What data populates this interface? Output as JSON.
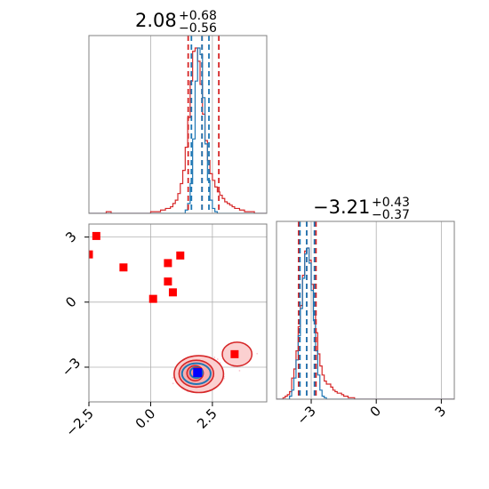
{
  "chart_data": {
    "type": "corner",
    "parameters": [
      {
        "title_value": "2.08",
        "title_upper": "+0.68",
        "title_lower": "−0.56",
        "xlim": [
          -2.5,
          4.7
        ]
      },
      {
        "title_value": "−3.21",
        "title_upper": "+0.43",
        "title_lower": "−0.37",
        "xlim": [
          -4.6,
          3.6
        ]
      }
    ],
    "ticks_param1": [
      {
        "value": -2.5,
        "label": "−2.5"
      },
      {
        "value": 0.0,
        "label": "0.0"
      },
      {
        "value": 2.5,
        "label": "2.5"
      }
    ],
    "ticks_param2": [
      {
        "value": -3,
        "label": "−3"
      },
      {
        "value": 0,
        "label": "0"
      },
      {
        "value": 3,
        "label": "3"
      }
    ],
    "grid": true,
    "colors": {
      "red": "#d62728",
      "blue": "#1f77b4",
      "marker_red": "#ff0000",
      "marker_blue": "#0000ff",
      "grid": "#b0b0b0",
      "frame": "#808080"
    },
    "series": [
      {
        "color": "red",
        "quantile_lines_param1": [
          1.52,
          2.08,
          2.76
        ],
        "quantile_lines_param2": [
          -3.58,
          -3.21,
          -2.78
        ],
        "hist_param1": {
          "bin_start": -2.5,
          "bin_width": 0.1,
          "values": [
            0,
            0,
            0,
            0,
            0,
            0,
            0,
            1,
            1,
            0,
            0,
            0,
            0,
            0,
            0,
            0,
            0,
            0,
            0,
            0,
            0,
            0,
            0,
            0,
            0,
            1,
            1,
            1,
            1,
            2,
            2,
            3,
            3,
            4,
            6,
            8,
            12,
            18,
            26,
            40,
            58,
            80,
            98,
            100,
            92,
            78,
            60,
            44,
            32,
            24,
            20,
            16,
            13,
            11,
            9,
            7,
            6,
            5,
            4,
            3,
            3,
            2,
            2,
            1,
            1,
            1,
            1,
            0,
            0,
            0,
            0,
            0
          ]
        },
        "hist_param2": {
          "bin_start": -4.6,
          "bin_width": 0.1,
          "values": [
            0,
            0,
            0,
            1,
            2,
            3,
            5,
            14,
            20,
            32,
            48,
            62,
            82,
            98,
            100,
            92,
            76,
            58,
            44,
            30,
            22,
            16,
            12,
            10,
            10,
            8,
            6,
            5,
            4,
            4,
            3,
            2,
            2,
            1,
            1,
            1,
            0,
            0,
            0,
            0,
            0,
            0,
            0,
            0,
            0,
            0,
            0,
            0,
            0,
            0,
            0,
            0,
            0,
            0,
            0,
            0,
            0,
            0,
            0,
            0,
            0,
            0,
            0,
            0,
            0,
            0,
            0,
            0,
            0,
            0,
            0,
            0,
            0,
            0,
            0,
            0,
            0,
            0,
            0,
            0,
            0,
            0
          ]
        }
      },
      {
        "color": "blue",
        "quantile_lines_param1": [
          1.65,
          2.08,
          2.36
        ],
        "quantile_lines_param2": [
          -3.52,
          -3.21,
          -2.85
        ],
        "hist_param1": {
          "bin_start": -2.5,
          "bin_width": 0.1,
          "values": [
            0,
            0,
            0,
            0,
            0,
            0,
            0,
            0,
            0,
            0,
            0,
            0,
            0,
            0,
            0,
            0,
            0,
            0,
            0,
            0,
            0,
            0,
            0,
            0,
            0,
            0,
            0,
            0,
            0,
            0,
            0,
            0,
            0,
            0,
            0,
            0,
            0,
            0,
            0,
            2,
            6,
            18,
            45,
            80,
            100,
            96,
            70,
            42,
            20,
            8,
            3,
            1,
            0,
            0,
            0,
            0,
            0,
            0,
            0,
            0,
            0,
            0,
            0,
            0,
            0,
            0,
            0,
            0,
            0,
            0,
            0,
            0
          ]
        },
        "hist_param2": {
          "bin_start": -4.6,
          "bin_width": 0.1,
          "values": [
            0,
            0,
            0,
            0,
            0,
            0,
            2,
            6,
            14,
            26,
            42,
            60,
            80,
            96,
            100,
            90,
            72,
            52,
            32,
            16,
            6,
            2,
            1,
            0,
            0,
            0,
            0,
            0,
            0,
            0,
            0,
            0,
            0,
            0,
            0,
            0,
            0,
            0,
            0,
            0,
            0,
            0,
            0,
            0,
            0,
            0,
            0,
            0,
            0,
            0,
            0,
            0,
            0,
            0,
            0,
            0,
            0,
            0,
            0,
            0,
            0,
            0,
            0,
            0,
            0,
            0,
            0,
            0,
            0,
            0,
            0,
            0,
            0,
            0,
            0,
            0,
            0,
            0,
            0,
            0,
            0,
            0
          ]
        }
      }
    ],
    "red_markers": [
      {
        "x": -2.5,
        "y": 2.2
      },
      {
        "x": -2.2,
        "y": 3.05
      },
      {
        "x": -1.1,
        "y": 1.6
      },
      {
        "x": 0.1,
        "y": 0.15
      },
      {
        "x": 0.7,
        "y": 0.95
      },
      {
        "x": 0.7,
        "y": 1.8
      },
      {
        "x": 0.9,
        "y": 0.45
      },
      {
        "x": 1.2,
        "y": 2.15
      },
      {
        "x": 3.4,
        "y": -2.4
      },
      {
        "x": 1.9,
        "y": -3.2
      }
    ],
    "truth_marker": {
      "x": 1.9,
      "y": -3.25
    },
    "contours_red": [
      {
        "cx": 1.8,
        "cy": -3.28,
        "rx": 0.33,
        "ry": 0.35,
        "fill": "#f69293",
        "stroke": "#d62728"
      },
      {
        "cx": 1.85,
        "cy": -3.3,
        "rx": 0.7,
        "ry": 0.62,
        "fill": "#f8b0b0",
        "stroke": "#d62728"
      },
      {
        "cx": 1.95,
        "cy": -3.32,
        "rx": 1.0,
        "ry": 0.85,
        "fill": "#fbd0d0",
        "stroke": "#d62728"
      }
    ],
    "contours_blue": [
      {
        "cx": 1.85,
        "cy": -3.25,
        "rx": 0.25,
        "ry": 0.25,
        "stroke": "#1f77b4"
      },
      {
        "cx": 1.85,
        "cy": -3.3,
        "rx": 0.58,
        "ry": 0.48,
        "stroke": "#1f77b4"
      }
    ],
    "red_cloud_extension": {
      "cx": 3.5,
      "cy": -2.4,
      "rx": 0.6,
      "ry": 0.55
    }
  }
}
